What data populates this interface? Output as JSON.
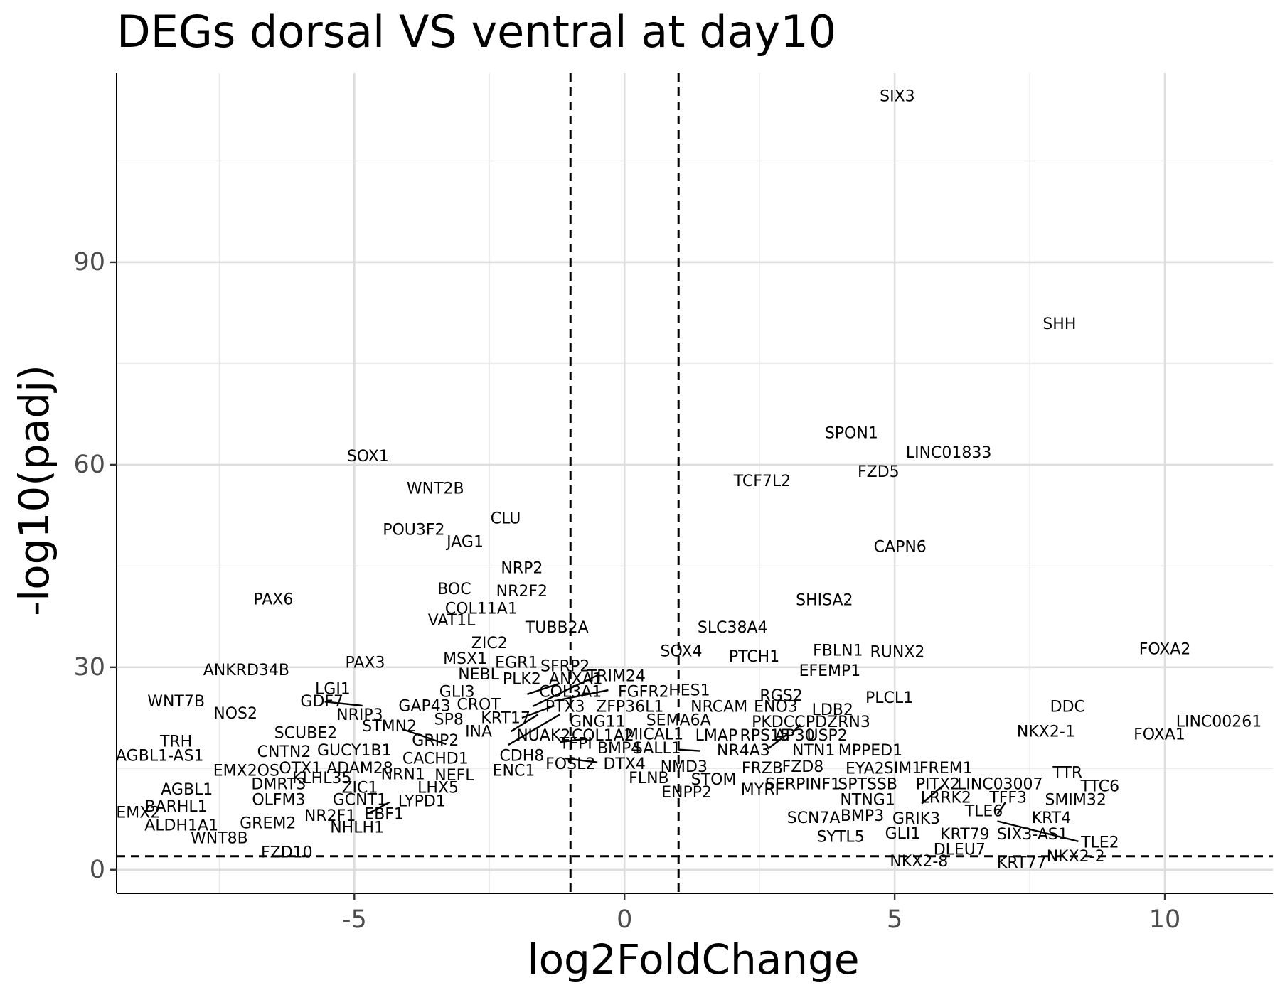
{
  "chart_data": {
    "type": "scatter",
    "title": "DEGs dorsal VS ventral at day10",
    "xlabel": "log2FoldChange",
    "ylabel": "-log10(padj)",
    "xlim": [
      -9.4,
      12.0
    ],
    "ylim": [
      -3.5,
      118.0
    ],
    "xticks": [
      -5,
      0,
      5,
      10
    ],
    "xtick_labels": [
      "-5",
      "0",
      "5",
      "10"
    ],
    "yticks": [
      0,
      30,
      60,
      90
    ],
    "ytick_labels": [
      "0",
      "30",
      "60",
      "90"
    ],
    "grid": true,
    "legend": "none",
    "thresholds": {
      "x": [
        -1,
        1
      ],
      "y": 2
    },
    "points": [
      {
        "label": "SIX3",
        "x": 5.05,
        "y": 114.5
      },
      {
        "label": "SHH",
        "x": 8.05,
        "y": 80.8
      },
      {
        "label": "SPON1",
        "x": 4.2,
        "y": 64.6
      },
      {
        "label": "LINC01833",
        "x": 6.0,
        "y": 61.7
      },
      {
        "label": "SOX1",
        "x": -4.75,
        "y": 61.2
      },
      {
        "label": "FZD5",
        "x": 4.7,
        "y": 58.9
      },
      {
        "label": "TCF7L2",
        "x": 2.55,
        "y": 57.5
      },
      {
        "label": "WNT2B",
        "x": -3.5,
        "y": 56.4
      },
      {
        "label": "CLU",
        "x": -2.2,
        "y": 52.0
      },
      {
        "label": "POU3F2",
        "x": -3.9,
        "y": 50.3
      },
      {
        "label": "JAG1",
        "x": -2.95,
        "y": 48.5
      },
      {
        "label": "CAPN6",
        "x": 5.1,
        "y": 47.8
      },
      {
        "label": "NRP2",
        "x": -1.9,
        "y": 44.6
      },
      {
        "label": "BOC",
        "x": -3.15,
        "y": 41.5
      },
      {
        "label": "NR2F2",
        "x": -1.9,
        "y": 41.2
      },
      {
        "label": "PAX6",
        "x": -6.5,
        "y": 40.0
      },
      {
        "label": "SHISA2",
        "x": 3.7,
        "y": 39.9
      },
      {
        "label": "COL11A1",
        "x": -2.65,
        "y": 38.6
      },
      {
        "label": "VAT1L",
        "x": -3.2,
        "y": 36.9
      },
      {
        "label": "TUBB2A",
        "x": -1.25,
        "y": 35.8
      },
      {
        "label": "SLC38A4",
        "x": 2.0,
        "y": 35.8
      },
      {
        "label": "ZIC2",
        "x": -2.5,
        "y": 33.5
      },
      {
        "label": "FOXA2",
        "x": 10.0,
        "y": 32.6
      },
      {
        "label": "SOX4",
        "x": 1.05,
        "y": 32.3
      },
      {
        "label": "FBLN1",
        "x": 3.95,
        "y": 32.4
      },
      {
        "label": "RUNX2",
        "x": 5.05,
        "y": 32.2
      },
      {
        "label": "PTCH1",
        "x": 2.4,
        "y": 31.5
      },
      {
        "label": "MSX1",
        "x": -2.95,
        "y": 31.2
      },
      {
        "label": "PAX3",
        "x": -4.8,
        "y": 30.6
      },
      {
        "label": "EGR1",
        "x": -2.0,
        "y": 30.6
      },
      {
        "label": "SFRP2",
        "x": -1.1,
        "y": 30.1
      },
      {
        "label": "ANKRD34B",
        "x": -7.0,
        "y": 29.5
      },
      {
        "label": "EFEMP1",
        "x": 3.8,
        "y": 29.4
      },
      {
        "label": "TRIM24",
        "x": -0.15,
        "y": 28.6
      },
      {
        "label": "NEBL",
        "x": -2.7,
        "y": 28.9
      },
      {
        "label": "PLK2",
        "x": -1.9,
        "y": 28.2
      },
      {
        "label": "ANXA1",
        "x": -0.9,
        "y": 28.2
      },
      {
        "label": "LGI1",
        "x": -5.4,
        "y": 26.7
      },
      {
        "label": "HES1",
        "x": 1.2,
        "y": 26.5
      },
      {
        "label": "COL3A1",
        "x": -1.0,
        "y": 26.3
      },
      {
        "label": "FGFR2",
        "x": 0.35,
        "y": 26.3
      },
      {
        "label": "GLI3",
        "x": -3.1,
        "y": 26.3
      },
      {
        "label": "RGS2",
        "x": 2.9,
        "y": 25.7
      },
      {
        "label": "PLCL1",
        "x": 4.9,
        "y": 25.4
      },
      {
        "label": "WNT7B",
        "x": -8.3,
        "y": 24.9
      },
      {
        "label": "GDF7",
        "x": -5.6,
        "y": 24.9
      },
      {
        "label": "GAP43",
        "x": -3.7,
        "y": 24.2
      },
      {
        "label": "CROT",
        "x": -2.7,
        "y": 24.4
      },
      {
        "label": "DDC",
        "x": 8.2,
        "y": 24.1
      },
      {
        "label": "PTX3",
        "x": -1.1,
        "y": 24.1
      },
      {
        "label": "ZFP36L1",
        "x": 0.1,
        "y": 24.1
      },
      {
        "label": "NRCAM",
        "x": 1.75,
        "y": 24.1
      },
      {
        "label": "ENO3",
        "x": 2.8,
        "y": 24.1
      },
      {
        "label": "LDB2",
        "x": 3.85,
        "y": 23.6
      },
      {
        "label": "NOS2",
        "x": -7.2,
        "y": 23.1
      },
      {
        "label": "NRIP3",
        "x": -4.9,
        "y": 22.9
      },
      {
        "label": "KRT17",
        "x": -2.2,
        "y": 22.4
      },
      {
        "label": "SP8",
        "x": -3.25,
        "y": 22.2
      },
      {
        "label": "SEMA6A",
        "x": 1.0,
        "y": 22.1
      },
      {
        "label": "GNG11",
        "x": -0.5,
        "y": 21.9
      },
      {
        "label": "PKDCC",
        "x": 2.85,
        "y": 21.8
      },
      {
        "label": "PDZRN3",
        "x": 3.95,
        "y": 21.8
      },
      {
        "label": "LINC00261",
        "x": 11.0,
        "y": 21.9
      },
      {
        "label": "STMN2",
        "x": -4.35,
        "y": 21.2
      },
      {
        "label": "INA",
        "x": -2.7,
        "y": 20.4
      },
      {
        "label": "NKX2-1",
        "x": 7.8,
        "y": 20.4
      },
      {
        "label": "SCUBE2",
        "x": -5.9,
        "y": 20.2
      },
      {
        "label": "FOXA1",
        "x": 9.9,
        "y": 20.0
      },
      {
        "label": "MICAL1",
        "x": 0.55,
        "y": 20.0
      },
      {
        "label": "COL1A2",
        "x": -0.4,
        "y": 19.8
      },
      {
        "label": "NUAK2",
        "x": -1.5,
        "y": 19.8
      },
      {
        "label": "LMAP",
        "x": 1.7,
        "y": 19.8
      },
      {
        "label": "RPS15",
        "x": 2.6,
        "y": 19.8
      },
      {
        "label": "AP30",
        "x": 3.15,
        "y": 19.8
      },
      {
        "label": "USP2",
        "x": 3.75,
        "y": 19.8
      },
      {
        "label": "TRH",
        "x": -8.3,
        "y": 18.9
      },
      {
        "label": "GRIP2",
        "x": -3.5,
        "y": 19.1
      },
      {
        "label": "TFPI",
        "x": -0.9,
        "y": 18.6
      },
      {
        "label": "BMP4",
        "x": -0.1,
        "y": 17.9
      },
      {
        "label": "SALL1",
        "x": 0.6,
        "y": 17.9
      },
      {
        "label": "NR4A3",
        "x": 2.2,
        "y": 17.6
      },
      {
        "label": "NTN1",
        "x": 3.5,
        "y": 17.6
      },
      {
        "label": "MPPED1",
        "x": 4.55,
        "y": 17.6
      },
      {
        "label": "GUCY1B1",
        "x": -5.0,
        "y": 17.6
      },
      {
        "label": "CNTN2",
        "x": -6.3,
        "y": 17.4
      },
      {
        "label": "AGBL1-AS1",
        "x": -8.6,
        "y": 16.8
      },
      {
        "label": "CDH8",
        "x": -1.9,
        "y": 16.8
      },
      {
        "label": "CACHD1",
        "x": -3.5,
        "y": 16.4
      },
      {
        "label": "FOSL2",
        "x": -1.0,
        "y": 15.6
      },
      {
        "label": "DTX4",
        "x": 0.0,
        "y": 15.6
      },
      {
        "label": "NMD3",
        "x": 1.1,
        "y": 15.2
      },
      {
        "label": "OTX1",
        "x": -6.0,
        "y": 15.0
      },
      {
        "label": "ADAM28",
        "x": -4.9,
        "y": 15.0
      },
      {
        "label": "FRZB",
        "x": 2.55,
        "y": 15.0
      },
      {
        "label": "FZD8",
        "x": 3.3,
        "y": 15.2
      },
      {
        "label": "EYA2",
        "x": 4.45,
        "y": 14.9
      },
      {
        "label": "SIM1",
        "x": 5.15,
        "y": 15.0
      },
      {
        "label": "FREM1",
        "x": 5.95,
        "y": 15.0
      },
      {
        "label": "ENC1",
        "x": -2.05,
        "y": 14.6
      },
      {
        "label": "EMX2OS",
        "x": -7.0,
        "y": 14.6
      },
      {
        "label": "TTR",
        "x": 8.2,
        "y": 14.3
      },
      {
        "label": "NRN1",
        "x": -4.1,
        "y": 14.1
      },
      {
        "label": "NEFL",
        "x": -3.15,
        "y": 13.9
      },
      {
        "label": "KLHL35",
        "x": -5.6,
        "y": 13.5
      },
      {
        "label": "FLNB",
        "x": 0.45,
        "y": 13.5
      },
      {
        "label": "STOM",
        "x": 1.65,
        "y": 13.3
      },
      {
        "label": "DMRT3",
        "x": -6.4,
        "y": 12.6
      },
      {
        "label": "SERPINF1",
        "x": 3.3,
        "y": 12.6
      },
      {
        "label": "SPTSSB",
        "x": 4.5,
        "y": 12.6
      },
      {
        "label": "PITX2",
        "x": 5.8,
        "y": 12.6
      },
      {
        "label": "LINC03007",
        "x": 6.95,
        "y": 12.6
      },
      {
        "label": "TTC6",
        "x": 8.8,
        "y": 12.3
      },
      {
        "label": "ZIC1",
        "x": -4.9,
        "y": 12.1
      },
      {
        "label": "LHX5",
        "x": -3.45,
        "y": 12.1
      },
      {
        "label": "AGBL1",
        "x": -8.1,
        "y": 11.8
      },
      {
        "label": "MYRF",
        "x": 2.55,
        "y": 11.8
      },
      {
        "label": "ENPP2",
        "x": 1.15,
        "y": 11.4
      },
      {
        "label": "LRRK2",
        "x": 5.95,
        "y": 10.6
      },
      {
        "label": "TFF3",
        "x": 7.1,
        "y": 10.6
      },
      {
        "label": "NTNG1",
        "x": 4.5,
        "y": 10.3
      },
      {
        "label": "SMIM32",
        "x": 8.35,
        "y": 10.3
      },
      {
        "label": "OLFM3",
        "x": -6.4,
        "y": 10.3
      },
      {
        "label": "GCNT1",
        "x": -4.9,
        "y": 10.3
      },
      {
        "label": "LYPD1",
        "x": -3.75,
        "y": 10.1
      },
      {
        "label": "BARHL1",
        "x": -8.3,
        "y": 9.3
      },
      {
        "label": "TLE6",
        "x": 6.65,
        "y": 8.6
      },
      {
        "label": "EMX2",
        "x": -9.0,
        "y": 8.4
      },
      {
        "label": "EBF1",
        "x": -4.45,
        "y": 8.2
      },
      {
        "label": "NR2F1",
        "x": -5.45,
        "y": 7.9
      },
      {
        "label": "BMP3",
        "x": 4.4,
        "y": 7.9
      },
      {
        "label": "SCN7A",
        "x": 3.5,
        "y": 7.6
      },
      {
        "label": "GRIK3",
        "x": 5.4,
        "y": 7.5
      },
      {
        "label": "KRT4",
        "x": 7.9,
        "y": 7.6
      },
      {
        "label": "GREM2",
        "x": -6.6,
        "y": 6.8
      },
      {
        "label": "ALDH1A1",
        "x": -8.2,
        "y": 6.5
      },
      {
        "label": "NHLH1",
        "x": -4.95,
        "y": 6.2
      },
      {
        "label": "GLI1",
        "x": 5.15,
        "y": 5.3
      },
      {
        "label": "KRT79",
        "x": 6.3,
        "y": 5.2
      },
      {
        "label": "SIX3-AS1",
        "x": 7.55,
        "y": 5.2
      },
      {
        "label": "SYTL5",
        "x": 4.0,
        "y": 4.8
      },
      {
        "label": "WNT8B",
        "x": -7.5,
        "y": 4.6
      },
      {
        "label": "TLE2",
        "x": 8.8,
        "y": 4.0
      },
      {
        "label": "DLEU7",
        "x": 6.2,
        "y": 2.9
      },
      {
        "label": "FZD10",
        "x": -6.25,
        "y": 2.5
      },
      {
        "label": "NKX2-2",
        "x": 8.35,
        "y": 1.9
      },
      {
        "label": "NKX2-8",
        "x": 5.45,
        "y": 1.2
      },
      {
        "label": "KRT77",
        "x": 7.35,
        "y": 1.0
      }
    ]
  }
}
